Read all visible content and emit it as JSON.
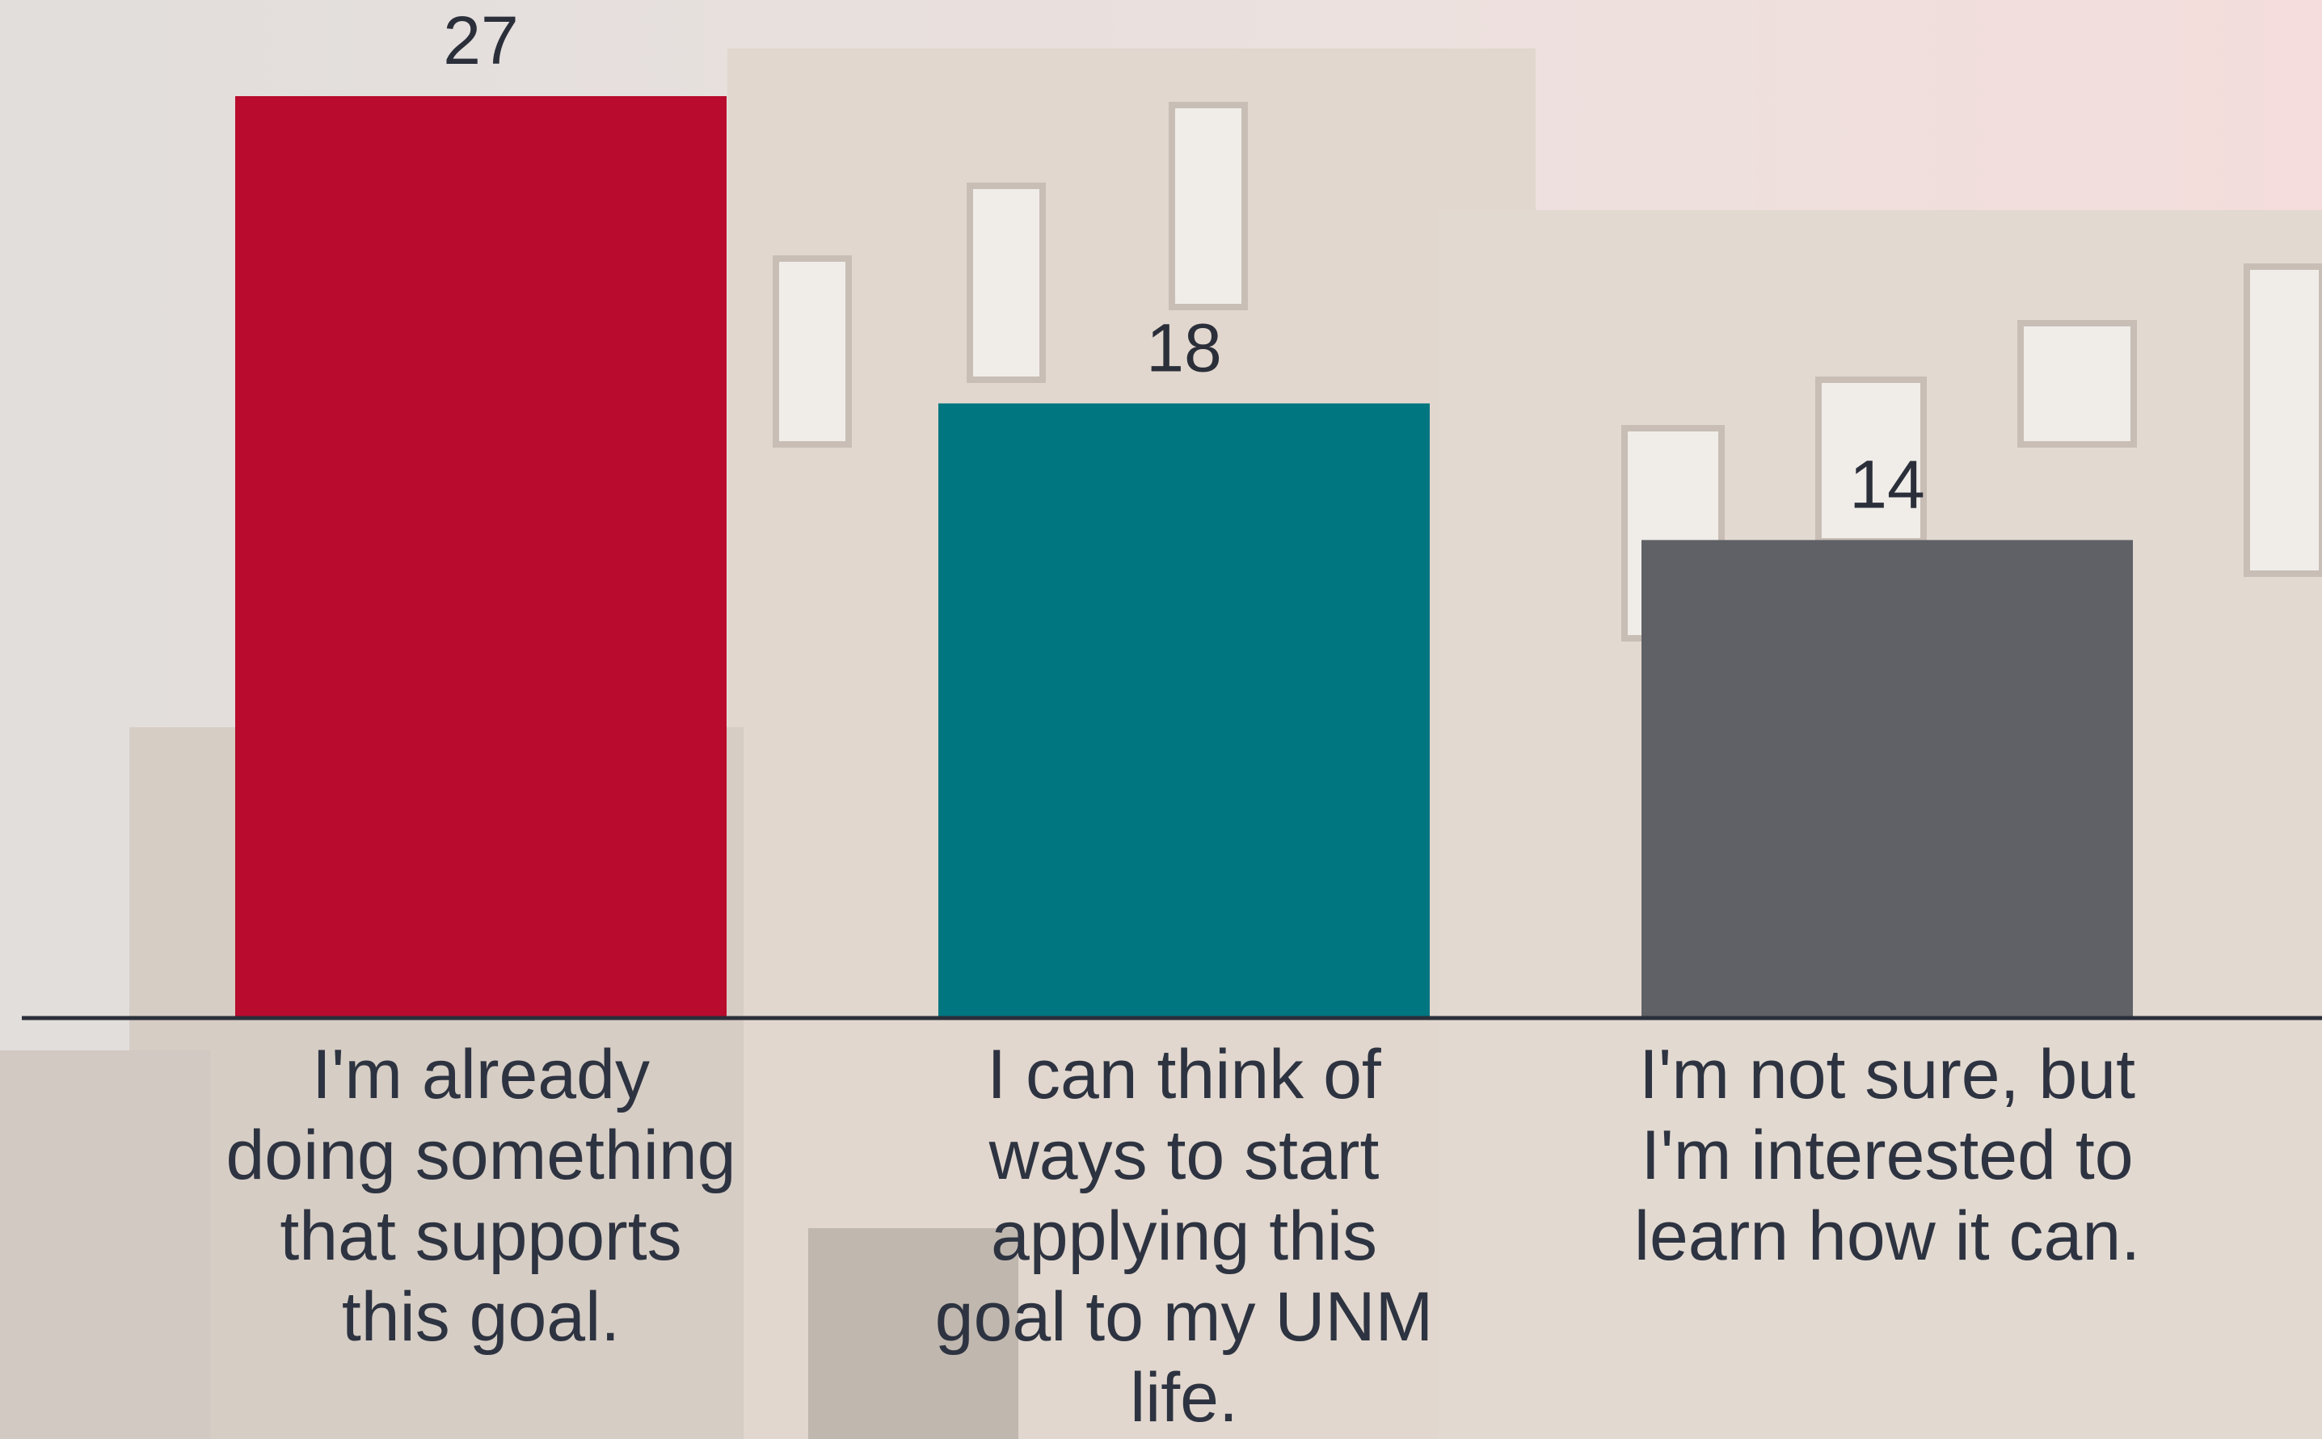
{
  "chart_data": {
    "type": "bar",
    "categories": [
      "I'm already doing something that supports this goal.",
      "I can think of ways to start applying this goal to my UNM life.",
      "I'm not sure, but I'm interested to learn how it can."
    ],
    "values": [
      27,
      18,
      14
    ],
    "colors": [
      "#b90b2d",
      "#007681",
      "#5f6166"
    ]
  }
}
